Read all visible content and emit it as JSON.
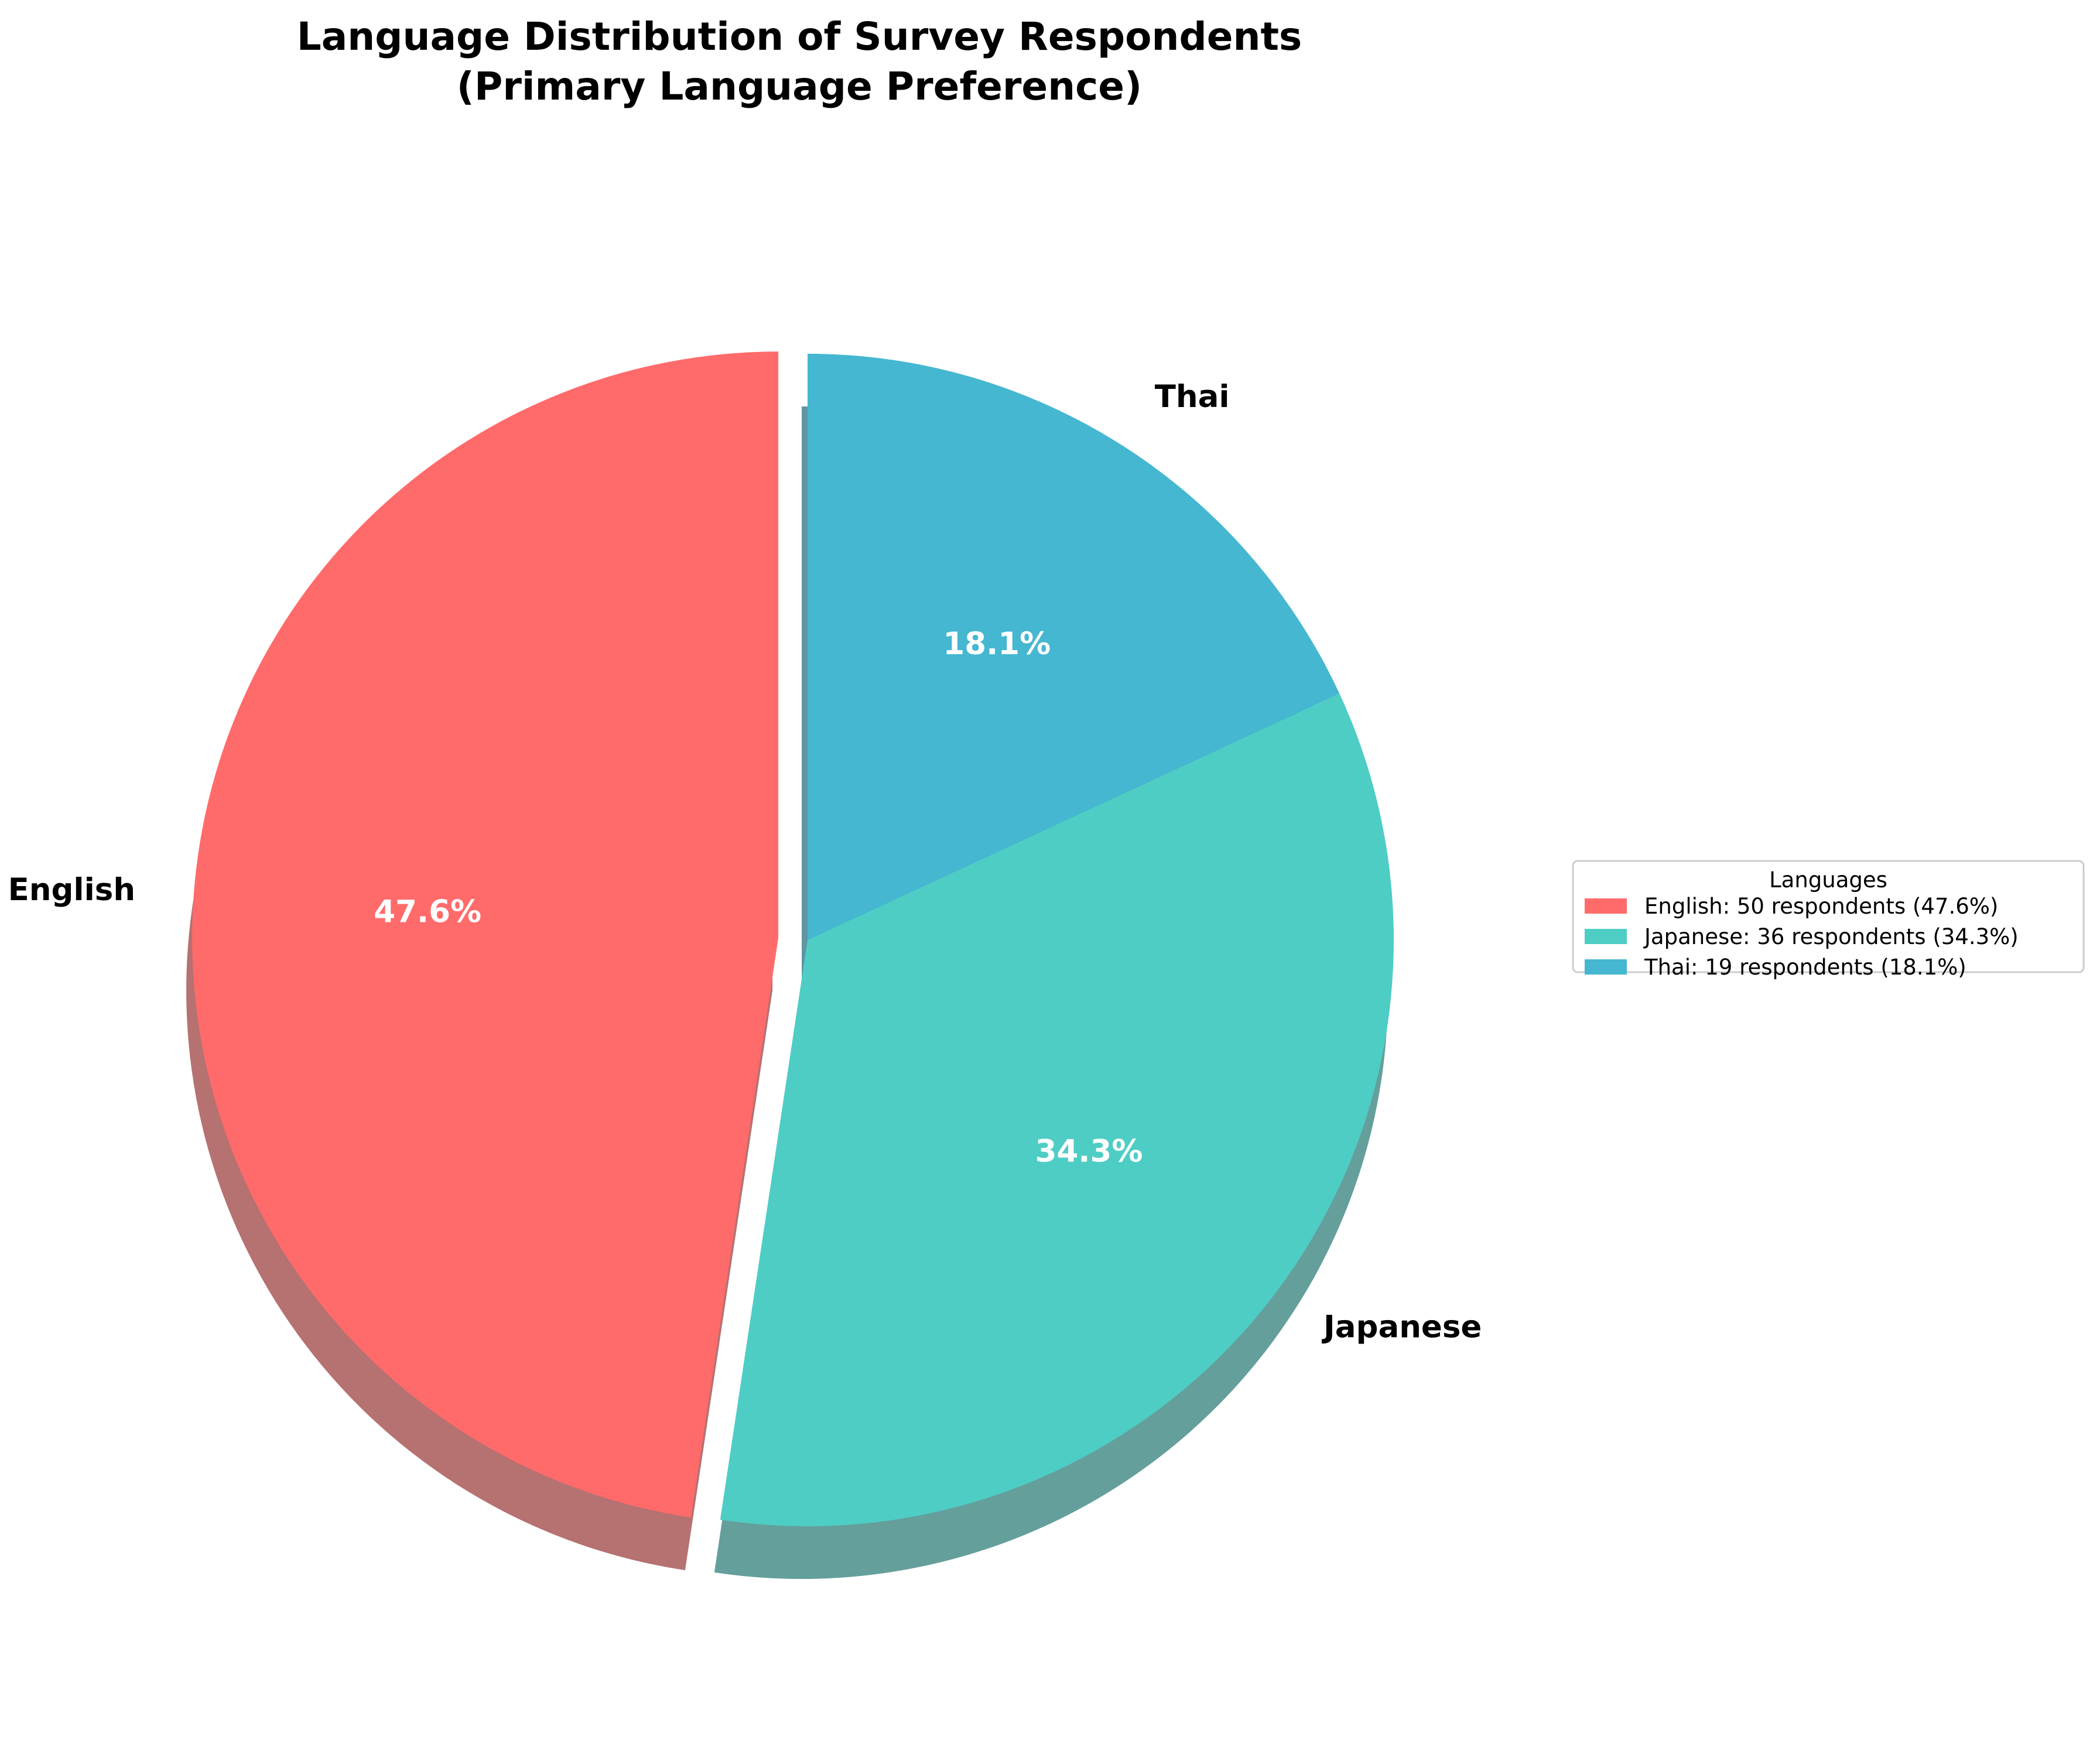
{
  "chart_data": {
    "type": "pie",
    "title": "Language Distribution of Survey Respondents",
    "subtitle": "(Primary Language Preference)",
    "categories": [
      "English",
      "Japanese",
      "Thai"
    ],
    "values": [
      50,
      36,
      19
    ],
    "percent_labels": [
      "47.6%",
      "34.3%",
      "18.1%"
    ],
    "colors": [
      "#FF6B6B",
      "#4ECDC4",
      "#45B7D1"
    ],
    "start_angle_deg": 90,
    "direction": "counterclockwise",
    "exploded_slice": "English",
    "shadow": true,
    "legend": {
      "title": "Languages",
      "placement": "center-right",
      "entries": [
        "English: 50 respondents (47.6%)",
        "Japanese: 36 respondents (34.3%)",
        "Thai: 19 respondents (18.1%)"
      ]
    }
  }
}
